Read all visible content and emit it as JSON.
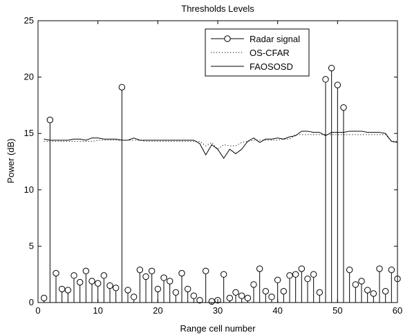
{
  "chart_data": {
    "type": "line",
    "title": "Thresholds Levels",
    "xlabel": "Range cell number",
    "ylabel": "Power (dB)",
    "xlim": [
      0,
      60
    ],
    "ylim": [
      0,
      25
    ],
    "xticks": [
      0,
      10,
      20,
      30,
      40,
      50,
      60
    ],
    "yticks": [
      0,
      5,
      10,
      15,
      20,
      25
    ],
    "grid": false,
    "legend_position": "top-right",
    "series": [
      {
        "name": "Radar signal",
        "style": "stem",
        "color": "#000000",
        "x": [
          1,
          2,
          3,
          4,
          5,
          6,
          7,
          8,
          9,
          10,
          11,
          12,
          13,
          14,
          15,
          16,
          17,
          18,
          19,
          20,
          21,
          22,
          23,
          24,
          25,
          26,
          27,
          28,
          29,
          30,
          31,
          32,
          33,
          34,
          35,
          36,
          37,
          38,
          39,
          40,
          41,
          42,
          43,
          44,
          45,
          46,
          47,
          48,
          49,
          50,
          51,
          52,
          53,
          54,
          55,
          56,
          57,
          58,
          59,
          60
        ],
        "values": [
          0.4,
          16.2,
          2.6,
          1.2,
          1.1,
          2.4,
          1.8,
          2.8,
          1.9,
          1.7,
          2.4,
          1.5,
          1.3,
          19.1,
          1.1,
          0.5,
          2.9,
          2.3,
          2.8,
          1.2,
          2.2,
          1.9,
          0.9,
          2.6,
          1.2,
          0.6,
          0.2,
          2.8,
          0.1,
          0.2,
          2.5,
          0.4,
          0.9,
          0.6,
          0.4,
          1.6,
          3.0,
          1.0,
          0.5,
          2.0,
          1.0,
          2.4,
          2.5,
          3.0,
          2.1,
          2.5,
          0.9,
          19.8,
          20.8,
          19.3,
          17.3,
          2.9,
          1.6,
          1.9,
          1.1,
          0.8,
          3.0,
          1.0,
          2.9,
          2.1
        ]
      },
      {
        "name": "OS-CFAR",
        "style": "dotted",
        "color": "#000000",
        "x": [
          1,
          2,
          3,
          4,
          5,
          6,
          7,
          8,
          9,
          10,
          11,
          12,
          13,
          14,
          15,
          16,
          17,
          18,
          19,
          20,
          21,
          22,
          23,
          24,
          25,
          26,
          27,
          28,
          29,
          30,
          31,
          32,
          33,
          34,
          35,
          36,
          37,
          38,
          39,
          40,
          41,
          42,
          43,
          44,
          45,
          46,
          47,
          48,
          49,
          50,
          51,
          52,
          53,
          54,
          55,
          56,
          57,
          58,
          59,
          60
        ],
        "values": [
          14.3,
          14.3,
          14.3,
          14.3,
          14.3,
          14.3,
          14.3,
          14.3,
          14.3,
          14.4,
          14.4,
          14.4,
          14.4,
          14.4,
          14.4,
          14.4,
          14.4,
          14.3,
          14.3,
          14.3,
          14.3,
          14.3,
          14.3,
          14.3,
          14.3,
          14.3,
          14.3,
          13.9,
          14.2,
          13.6,
          14.0,
          13.9,
          13.9,
          14.2,
          14.3,
          14.4,
          14.4,
          14.4,
          14.4,
          14.4,
          14.5,
          14.5,
          14.9,
          14.9,
          14.9,
          14.9,
          14.9,
          14.9,
          14.9,
          14.9,
          14.9,
          14.9,
          14.9,
          14.9,
          14.9,
          14.9,
          14.9,
          14.9,
          14.3,
          14.3
        ]
      },
      {
        "name": "FAOSOSD",
        "style": "solid",
        "color": "#000000",
        "x": [
          1,
          2,
          3,
          4,
          5,
          6,
          7,
          8,
          9,
          10,
          11,
          12,
          13,
          14,
          15,
          16,
          17,
          18,
          19,
          20,
          21,
          22,
          23,
          24,
          25,
          26,
          27,
          28,
          29,
          30,
          31,
          32,
          33,
          34,
          35,
          36,
          37,
          38,
          39,
          40,
          41,
          42,
          43,
          44,
          45,
          46,
          47,
          48,
          49,
          50,
          51,
          52,
          53,
          54,
          55,
          56,
          57,
          58,
          59,
          60
        ],
        "values": [
          14.5,
          14.4,
          14.4,
          14.4,
          14.4,
          14.5,
          14.5,
          14.4,
          14.6,
          14.6,
          14.5,
          14.5,
          14.5,
          14.4,
          14.4,
          14.6,
          14.4,
          14.4,
          14.4,
          14.4,
          14.4,
          14.4,
          14.4,
          14.4,
          14.4,
          14.4,
          14.1,
          13.1,
          14.0,
          13.6,
          12.8,
          13.6,
          13.2,
          13.6,
          14.3,
          14.6,
          14.2,
          14.5,
          14.5,
          14.6,
          14.5,
          14.7,
          14.8,
          15.2,
          15.2,
          15.1,
          15.1,
          14.8,
          15.1,
          15.1,
          15.1,
          15.2,
          15.2,
          15.2,
          15.1,
          15.1,
          15.1,
          15.0,
          14.3,
          14.2
        ]
      }
    ]
  }
}
